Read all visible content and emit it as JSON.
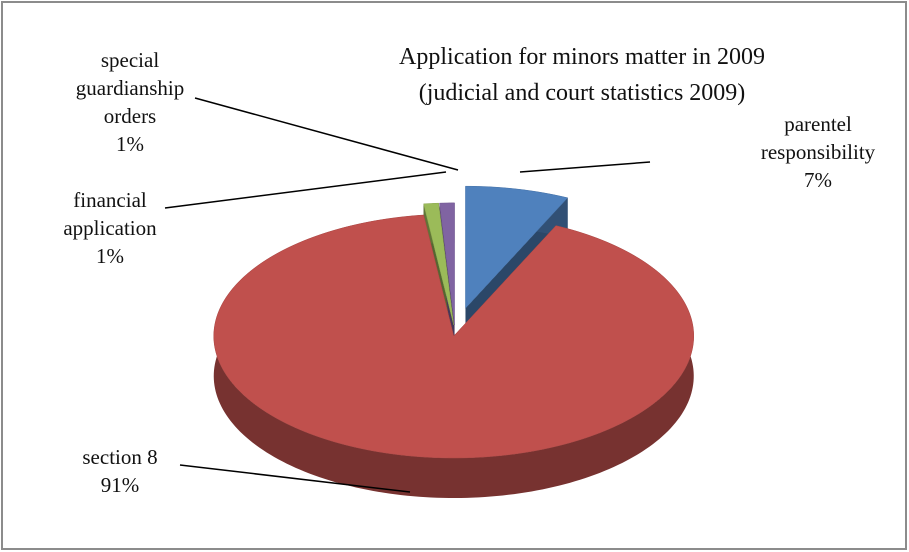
{
  "chart_data": {
    "type": "pie3d",
    "title": "Application for minors matter  in 2009",
    "subtitle": "(judicial and court statistics 2009)",
    "categories": [
      "parentel responsibility",
      "section 8",
      "financial application",
      "special guardianship orders"
    ],
    "values": [
      7,
      91,
      1,
      1
    ],
    "value_labels": [
      "7%",
      "91%",
      "1%",
      "1%"
    ],
    "colors": [
      "#4f81bd",
      "#c0504d",
      "#9bbb59",
      "#8064a2"
    ]
  }
}
